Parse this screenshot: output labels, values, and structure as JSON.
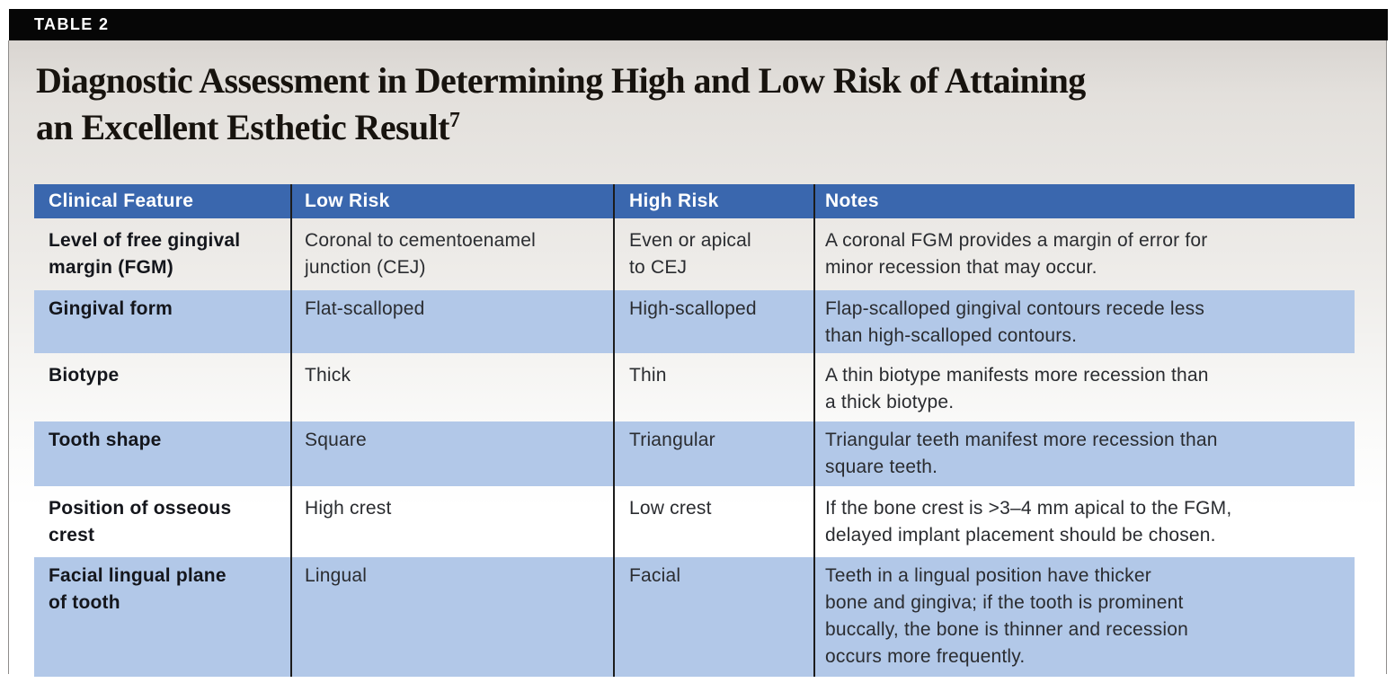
{
  "header": {
    "table_label": "TABLE 2",
    "title_line1": "Diagnostic Assessment in Determining High and Low Risk of Attaining",
    "title_line2": "an Excellent Esthetic Result",
    "reference_superscript": "7"
  },
  "table": {
    "columns": [
      "Clinical Feature",
      "Low Risk",
      "High Risk",
      "Notes"
    ],
    "rows": [
      {
        "feature": "Level of free gingival\nmargin (FGM)",
        "low_risk": "Coronal to cementoenamel\njunction (CEJ)",
        "high_risk": "Even or apical\nto CEJ",
        "notes": "A coronal FGM provides a margin of error for\nminor recession that may occur."
      },
      {
        "feature": "Gingival form",
        "low_risk": "Flat-scalloped",
        "high_risk": "High-scalloped",
        "notes": "Flap-scalloped gingival contours recede less\nthan high-scalloped contours."
      },
      {
        "feature": "Biotype",
        "low_risk": "Thick",
        "high_risk": "Thin",
        "notes": "A thin biotype manifests more recession than\na thick biotype."
      },
      {
        "feature": "Tooth shape",
        "low_risk": "Square",
        "high_risk": "Triangular",
        "notes": "Triangular teeth manifest more recession than\nsquare teeth."
      },
      {
        "feature": "Position of osseous\ncrest",
        "low_risk": "High crest",
        "high_risk": "Low crest",
        "notes": "If the bone crest is >3–4 mm apical to the FGM,\ndelayed implant placement should be chosen."
      },
      {
        "feature": "Facial lingual plane\nof tooth",
        "low_risk": "Lingual",
        "high_risk": "Facial",
        "notes": "Teeth in a lingual position have thicker\nbone and gingiva; if the tooth is prominent\nbuccally, the bone is thinner and recession\noccurs more frequently."
      }
    ]
  },
  "colors": {
    "bar_bg": "#060606",
    "header_bg": "#3a67ae",
    "header_text": "#ffffff",
    "row_alt_bg": "#b2c8e8",
    "divider": "#1c1c1c",
    "edge_line": "#8f8d8b",
    "title_color": "#17130e",
    "body_text": "#2a2c30",
    "feature_text": "#14161c"
  }
}
